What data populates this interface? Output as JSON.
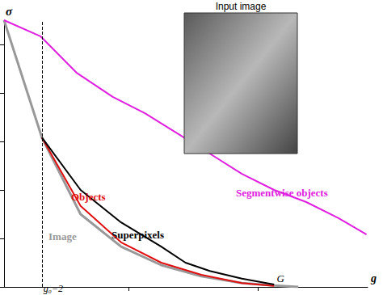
{
  "chart_data": {
    "type": "line",
    "x_label": "g",
    "y_label": "σ",
    "xlim": [
      1,
      10.6
    ],
    "ylim": [
      0,
      5.5
    ],
    "xticks": [
      4.3,
      7.7
    ],
    "yticks": [
      0,
      1,
      2,
      3,
      4,
      5
    ],
    "tick_labels": false,
    "grid": false,
    "series": [
      {
        "name": "Segmentwise objects",
        "color": "#e020e0",
        "x": [
          1,
          1.96,
          2.91,
          3.87,
          4.72,
          5.57,
          6.43,
          7.28,
          8.13,
          8.98,
          9.83,
          10.57
        ],
        "values": [
          5.5,
          5.17,
          4.42,
          3.92,
          3.58,
          3.17,
          2.75,
          2.33,
          2.0,
          1.75,
          1.42,
          1.08
        ]
      },
      {
        "name": "Objects",
        "color": "#e01010",
        "x": [
          2,
          3.02,
          4.09,
          5.15,
          6.21,
          7.28,
          8.13
        ],
        "values": [
          3.08,
          1.67,
          0.92,
          0.5,
          0.25,
          0.08,
          0.02
        ]
      },
      {
        "name": "Superpixels",
        "color": "#000000",
        "x": [
          2,
          3.02,
          4.09,
          5.15,
          5.79,
          6.43,
          7.28,
          8.13
        ],
        "values": [
          3.08,
          2.0,
          1.33,
          0.83,
          0.5,
          0.33,
          0.17,
          0.05
        ]
      },
      {
        "name": "Image",
        "color": "#999999",
        "x": [
          1,
          2,
          3.02,
          4.09,
          5.15,
          6.21,
          7.28,
          8.13,
          8.77
        ],
        "values": [
          5.5,
          3.08,
          1.5,
          0.83,
          0.45,
          0.22,
          0.08,
          0.03,
          0
        ]
      }
    ],
    "annotations": [
      {
        "text": "g₀=2",
        "x": 2,
        "line_style": "dashed"
      },
      {
        "text": "G",
        "x": 8.3
      }
    ],
    "inset": {
      "title": "Input image"
    }
  }
}
